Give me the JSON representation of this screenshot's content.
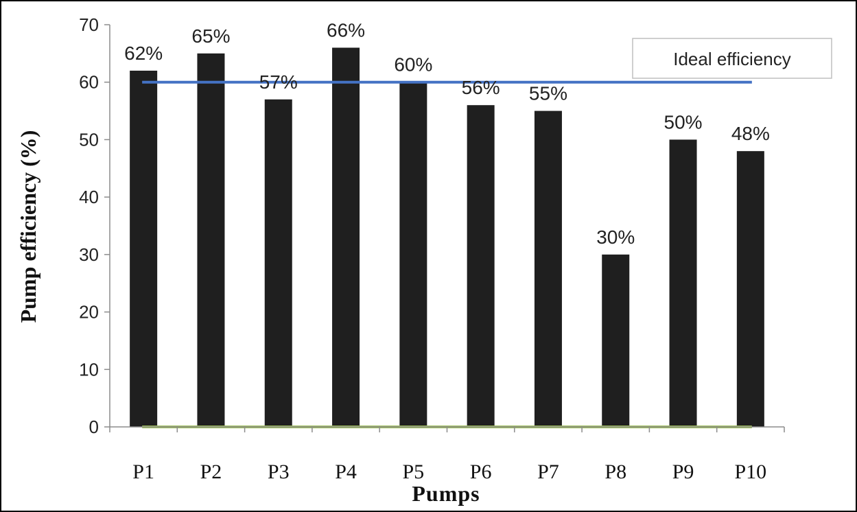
{
  "chart_data": {
    "type": "bar",
    "title": "",
    "xlabel": "Pumps",
    "ylabel": "Pump efficiency (%)",
    "categories": [
      "P1",
      "P2",
      "P3",
      "P4",
      "P5",
      "P6",
      "P7",
      "P8",
      "P9",
      "P10"
    ],
    "values": [
      62,
      65,
      57,
      66,
      60,
      56,
      55,
      30,
      50,
      48
    ],
    "data_labels": [
      "62%",
      "65%",
      "57%",
      "66%",
      "60%",
      "56%",
      "55%",
      "30%",
      "50%",
      "48%"
    ],
    "ylim": [
      0,
      70
    ],
    "yticks": [
      "0",
      "10",
      "20",
      "30",
      "40",
      "50",
      "60",
      "70"
    ],
    "grid": false,
    "bar_color": "#1f1f1f",
    "reference_lines": [
      {
        "name": "Ideal efficiency",
        "value": 60,
        "color": "#4472c4"
      },
      {
        "name": "",
        "value": 0,
        "color": "#9bbb59"
      }
    ],
    "legend": {
      "placement": "top-right",
      "entries": [
        "Ideal efficiency"
      ]
    }
  }
}
